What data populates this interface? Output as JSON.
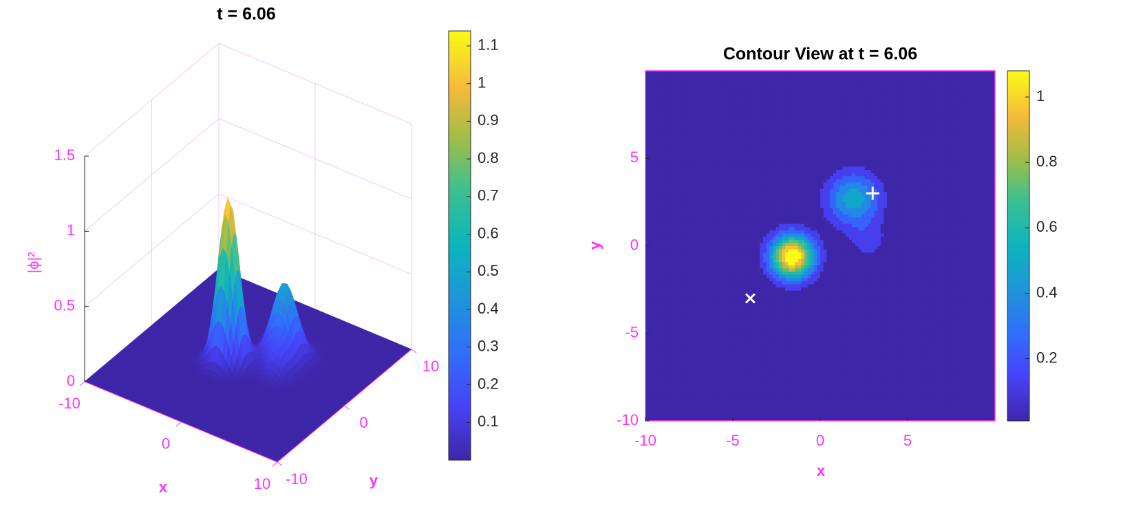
{
  "chart_data": [
    {
      "type": "surface3d",
      "title": "t = 6.06",
      "xlabel": "x",
      "ylabel": "y",
      "zlabel": "|ϕ|²",
      "xlim": [
        -10,
        10
      ],
      "ylim": [
        -10,
        10
      ],
      "zlim": [
        0,
        1.5
      ],
      "xticks": [
        -10,
        0,
        10
      ],
      "yticks": [
        -10,
        0,
        10
      ],
      "zticks": [
        0,
        0.5,
        1,
        1.5
      ],
      "peaks": [
        {
          "x": -1.6,
          "y": -0.6,
          "value": 1.1,
          "sigma": 0.9
        },
        {
          "x": 1.9,
          "y": 2.7,
          "value": 0.5,
          "sigma": 1.1
        },
        {
          "x": 2.8,
          "y": 0.3,
          "value": 0.15,
          "sigma": 0.8
        }
      ],
      "colormap": "parula",
      "clim": [
        0,
        1.14
      ],
      "cticks": [
        0.1,
        0.2,
        0.3,
        0.4,
        0.5,
        0.6,
        0.7,
        0.8,
        0.9,
        1,
        1.1
      ],
      "axis_color": "#ff33ff",
      "grid": true
    },
    {
      "type": "contour",
      "title": "Contour View at t = 6.06",
      "xlabel": "x",
      "ylabel": "y",
      "xlim": [
        -10,
        10
      ],
      "ylim": [
        -10,
        10
      ],
      "xticks": [
        -10,
        -5,
        0,
        5
      ],
      "yticks": [
        -10,
        -5,
        0,
        5
      ],
      "peaks": [
        {
          "x": -1.6,
          "y": -0.6,
          "value": 1.1,
          "sigma": 0.9
        },
        {
          "x": 1.9,
          "y": 2.7,
          "value": 0.5,
          "sigma": 1.1
        },
        {
          "x": 2.8,
          "y": 0.3,
          "value": 0.15,
          "sigma": 0.8
        }
      ],
      "levels": 10,
      "colormap": "parula",
      "clim": [
        0.01,
        1.08
      ],
      "cticks": [
        0.2,
        0.4,
        0.6,
        0.8,
        1
      ],
      "markers": [
        {
          "x": -4,
          "y": -3,
          "symbol": "x",
          "color": "#ffffff"
        },
        {
          "x": 3,
          "y": 3,
          "symbol": "+",
          "color": "#ffffff"
        }
      ],
      "axis_color": "#ff33ff"
    }
  ]
}
